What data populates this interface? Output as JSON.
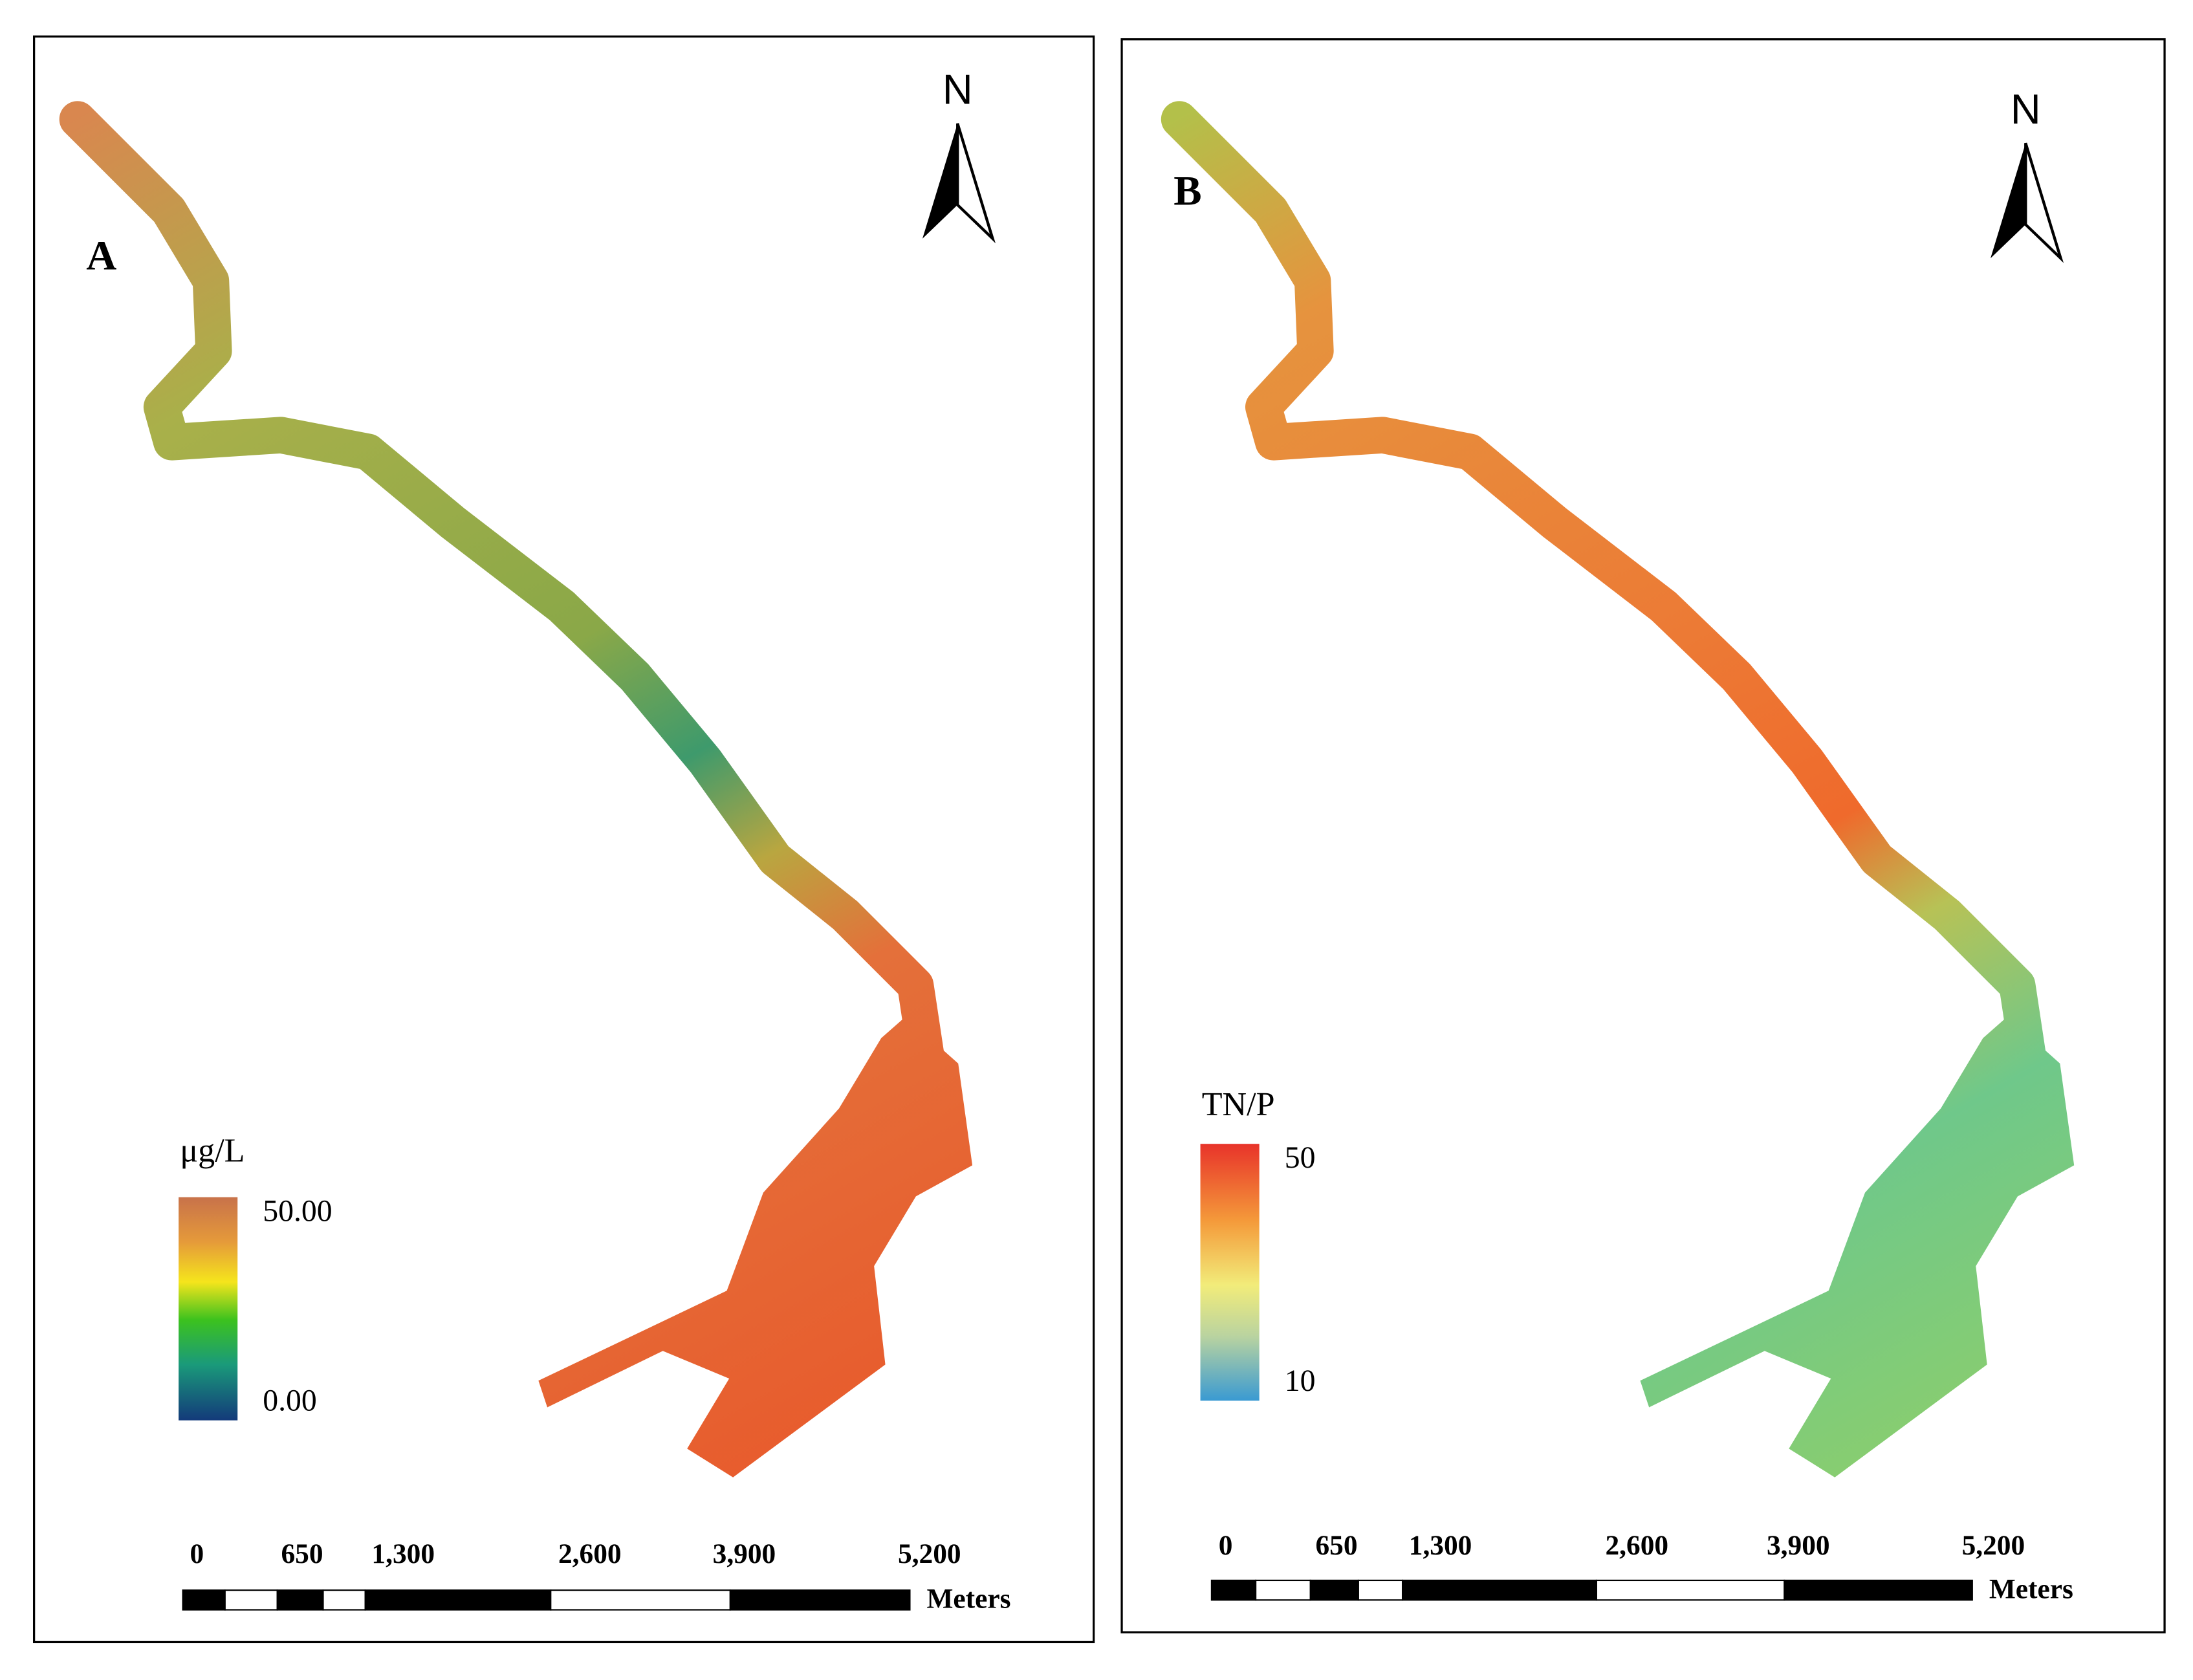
{
  "panels": [
    {
      "label": "A",
      "north": "N",
      "legend": {
        "title": "μg/L",
        "max": "50.00",
        "min": "0.00"
      },
      "scale_bar": {
        "ticks": [
          "0",
          "650",
          "1,300",
          "2,600",
          "3,900",
          "5,200"
        ],
        "unit": "Meters"
      }
    },
    {
      "label": "B",
      "north": "N",
      "legend": {
        "title": "TN/P",
        "max": "50",
        "min": "10"
      },
      "scale_bar": {
        "ticks": [
          "0",
          "650",
          "1,300",
          "2,600",
          "3,900",
          "5,200"
        ],
        "unit": "Meters"
      }
    }
  ]
}
